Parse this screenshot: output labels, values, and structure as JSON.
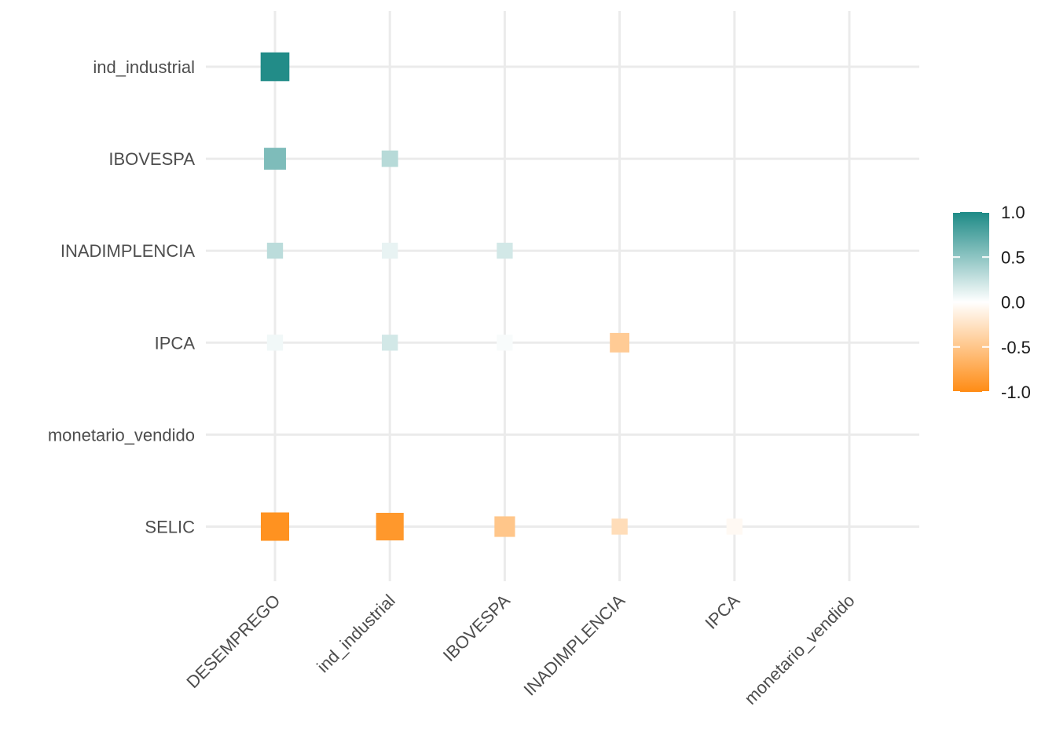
{
  "chart_data": {
    "type": "heatmap",
    "title": "",
    "xlabel": "",
    "ylabel": "",
    "x_categories": [
      "DESEMPREGO",
      "ind_industrial",
      "IBOVESPA",
      "INADIMPLENCIA",
      "IPCA",
      "monetario_vendido"
    ],
    "y_categories": [
      "ind_industrial",
      "IBOVESPA",
      "INADIMPLENCIA",
      "IPCA",
      "monetario_vendido",
      "SELIC"
    ],
    "cells": [
      {
        "x": "DESEMPREGO",
        "y": "ind_industrial",
        "value": 0.98
      },
      {
        "x": "DESEMPREGO",
        "y": "IBOVESPA",
        "value": 0.57
      },
      {
        "x": "ind_industrial",
        "y": "IBOVESPA",
        "value": 0.32
      },
      {
        "x": "DESEMPREGO",
        "y": "INADIMPLENCIA",
        "value": 0.3
      },
      {
        "x": "ind_industrial",
        "y": "INADIMPLENCIA",
        "value": 0.1
      },
      {
        "x": "IBOVESPA",
        "y": "INADIMPLENCIA",
        "value": 0.2
      },
      {
        "x": "DESEMPREGO",
        "y": "IPCA",
        "value": 0.06
      },
      {
        "x": "ind_industrial",
        "y": "IPCA",
        "value": 0.2
      },
      {
        "x": "IBOVESPA",
        "y": "IPCA",
        "value": 0.03
      },
      {
        "x": "INADIMPLENCIA",
        "y": "IPCA",
        "value": -0.45
      },
      {
        "x": "DESEMPREGO",
        "y": "monetario_vendido",
        "value": 0.0
      },
      {
        "x": "ind_industrial",
        "y": "monetario_vendido",
        "value": 0.0
      },
      {
        "x": "IBOVESPA",
        "y": "monetario_vendido",
        "value": 0.0
      },
      {
        "x": "INADIMPLENCIA",
        "y": "monetario_vendido",
        "value": 0.0
      },
      {
        "x": "IPCA",
        "y": "monetario_vendido",
        "value": 0.0
      },
      {
        "x": "DESEMPREGO",
        "y": "SELIC",
        "value": -0.95
      },
      {
        "x": "ind_industrial",
        "y": "SELIC",
        "value": -0.9
      },
      {
        "x": "IBOVESPA",
        "y": "SELIC",
        "value": -0.5
      },
      {
        "x": "INADIMPLENCIA",
        "y": "SELIC",
        "value": -0.3
      },
      {
        "x": "IPCA",
        "y": "SELIC",
        "value": -0.05
      }
    ],
    "legend": {
      "placement": "right",
      "range": [
        -1,
        1
      ],
      "ticks": [
        "1.0",
        "0.5",
        "0.0",
        "-0.5",
        "-1.0"
      ],
      "tick_values": [
        1.0,
        0.5,
        0.0,
        -0.5,
        -1.0
      ]
    },
    "colors": {
      "high": "#1d8a86",
      "mid": "#ffffff",
      "low": "#ff8c14"
    },
    "grid": true
  }
}
